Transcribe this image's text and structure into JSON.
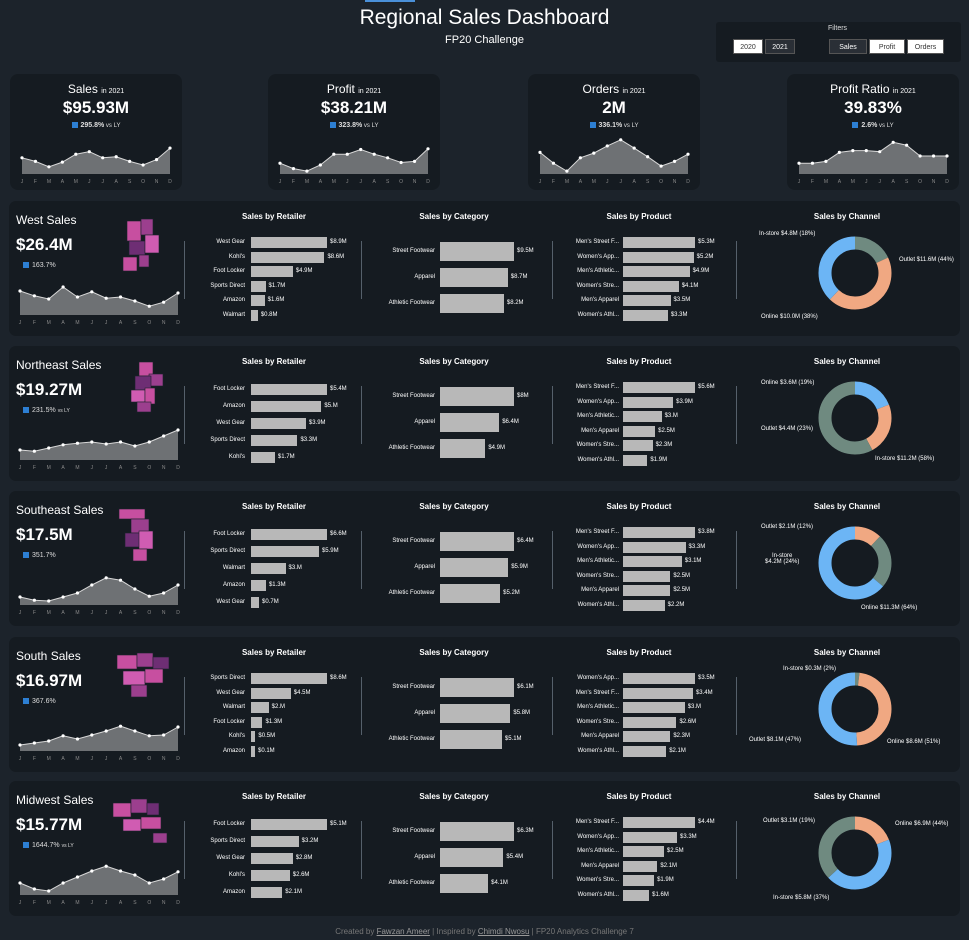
{
  "title": "Regional Sales Dashboard",
  "subtitle": "FP20 Challenge",
  "filters": {
    "label": "Filters",
    "years": [
      "2020",
      "2021"
    ],
    "metrics": [
      "Sales",
      "Profit",
      "Orders"
    ]
  },
  "kpis": [
    {
      "name": "Sales",
      "suffix": "in 2021",
      "value": "$95.93M",
      "delta": "295.8%",
      "vs": "vs LY",
      "spark": [
        0.45,
        0.35,
        0.2,
        0.33,
        0.55,
        0.62,
        0.45,
        0.48,
        0.35,
        0.25,
        0.4,
        0.72
      ]
    },
    {
      "name": "Profit",
      "suffix": "in 2021",
      "value": "$38.21M",
      "delta": "323.8%",
      "vs": "vs LY",
      "spark": [
        0.3,
        0.15,
        0.08,
        0.25,
        0.55,
        0.55,
        0.68,
        0.55,
        0.45,
        0.32,
        0.35,
        0.7
      ]
    },
    {
      "name": "Orders",
      "suffix": "in 2021",
      "value": "2M",
      "delta": "336.1%",
      "vs": "vs LY",
      "spark": [
        0.6,
        0.3,
        0.08,
        0.45,
        0.58,
        0.78,
        0.95,
        0.72,
        0.48,
        0.22,
        0.35,
        0.55
      ]
    },
    {
      "name": "Profit Ratio",
      "suffix": "in 2021",
      "value": "39.83%",
      "delta": "2.6%",
      "vs": "vs LY",
      "spark": [
        0.3,
        0.3,
        0.35,
        0.6,
        0.65,
        0.65,
        0.62,
        0.88,
        0.8,
        0.5,
        0.5,
        0.5
      ]
    }
  ],
  "months": [
    "J",
    "F",
    "M",
    "A",
    "M",
    "J",
    "J",
    "A",
    "S",
    "O",
    "N",
    "D"
  ],
  "regions": [
    {
      "name": "West Sales",
      "value": "$26.4M",
      "delta": "163.7%",
      "vs": "",
      "spark": [
        0.6,
        0.48,
        0.4,
        0.7,
        0.45,
        0.58,
        0.42,
        0.45,
        0.35,
        0.22,
        0.32,
        0.55
      ],
      "retailer": {
        "labels": [
          "West Gear",
          "Kohl's",
          "Foot Locker",
          "Sports Direct",
          "Amazon",
          "Walmart"
        ],
        "values": [
          8.9,
          8.6,
          4.9,
          1.7,
          1.6,
          0.8
        ],
        "text": [
          "$8.9M",
          "$8.6M",
          "$4.9M",
          "$1.7M",
          "$1.6M",
          "$0.8M"
        ]
      },
      "category": {
        "labels": [
          "Street Footwear",
          "Apparel",
          "Athletic Footwear"
        ],
        "values": [
          9.5,
          8.7,
          8.2
        ],
        "text": [
          "$9.5M",
          "$8.7M",
          "$8.2M"
        ]
      },
      "product": {
        "labels": [
          "Men's Street F...",
          "Women's App...",
          "Men's Athletic...",
          "Women's Stre...",
          "Men's Apparel",
          "Women's Athl..."
        ],
        "values": [
          5.3,
          5.2,
          4.9,
          4.1,
          3.5,
          3.3
        ],
        "text": [
          "$5.3M",
          "$5.2M",
          "$4.9M",
          "$4.1M",
          "$3.5M",
          "$3.3M"
        ]
      },
      "channel": {
        "labels": [
          "In-store $4.8M (18%)",
          "Outlet $11.6M (44%)",
          "Online $10.0M (38%)"
        ],
        "shares": [
          18,
          44,
          38
        ],
        "colors": [
          "#6f8a80",
          "#f0a882",
          "#6cb5f5"
        ]
      }
    },
    {
      "name": "Northeast Sales",
      "value": "$19.27M",
      "delta": "231.5%",
      "vs": "vs LY",
      "spark": [
        0.25,
        0.22,
        0.3,
        0.38,
        0.42,
        0.45,
        0.4,
        0.45,
        0.35,
        0.45,
        0.6,
        0.75
      ],
      "retailer": {
        "labels": [
          "Foot Locker",
          "Amazon",
          "West Gear",
          "Sports Direct",
          "Kohl's"
        ],
        "values": [
          5.4,
          5.0,
          3.9,
          3.3,
          1.7
        ],
        "text": [
          "$5.4M",
          "$5.M",
          "$3.9M",
          "$3.3M",
          "$1.7M"
        ]
      },
      "category": {
        "labels": [
          "Street Footwear",
          "Apparel",
          "Athletic Footwear"
        ],
        "values": [
          8.0,
          6.4,
          4.9
        ],
        "text": [
          "$8M",
          "$6.4M",
          "$4.9M"
        ]
      },
      "product": {
        "labels": [
          "Men's Street F...",
          "Women's App...",
          "Men's Athletic...",
          "Men's Apparel",
          "Women's Stre...",
          "Women's Athl..."
        ],
        "values": [
          5.6,
          3.9,
          3.0,
          2.5,
          2.3,
          1.9
        ],
        "text": [
          "$5.6M",
          "$3.9M",
          "$3.M",
          "$2.5M",
          "$2.3M",
          "$1.9M"
        ]
      },
      "channel": {
        "labels": [
          "Online $3.6M (19%)",
          "Outlet $4.4M (23%)",
          "In-store $11.2M (58%)"
        ],
        "shares": [
          19,
          23,
          58
        ],
        "colors": [
          "#6cb5f5",
          "#f0a882",
          "#6f8a80"
        ]
      }
    },
    {
      "name": "Southeast Sales",
      "value": "$17.5M",
      "delta": "351.7%",
      "vs": "",
      "spark": [
        0.2,
        0.12,
        0.1,
        0.2,
        0.3,
        0.5,
        0.68,
        0.62,
        0.4,
        0.22,
        0.3,
        0.5
      ],
      "retailer": {
        "labels": [
          "Foot Locker",
          "Sports Direct",
          "Walmart",
          "Amazon",
          "West Gear"
        ],
        "values": [
          6.6,
          5.9,
          3.0,
          1.3,
          0.7
        ],
        "text": [
          "$6.6M",
          "$5.9M",
          "$3.M",
          "$1.3M",
          "$0.7M"
        ]
      },
      "category": {
        "labels": [
          "Street Footwear",
          "Apparel",
          "Athletic Footwear"
        ],
        "values": [
          6.4,
          5.9,
          5.2
        ],
        "text": [
          "$6.4M",
          "$5.9M",
          "$5.2M"
        ]
      },
      "product": {
        "labels": [
          "Men's Street F...",
          "Women's App...",
          "Men's Athletic...",
          "Women's Stre...",
          "Men's Apparel",
          "Women's Athl..."
        ],
        "values": [
          3.8,
          3.3,
          3.1,
          2.5,
          2.5,
          2.2
        ],
        "text": [
          "$3.8M",
          "$3.3M",
          "$3.1M",
          "$2.5M",
          "$2.5M",
          "$2.2M"
        ]
      },
      "channel": {
        "labels": [
          "Outlet $2.1M (12%)",
          "In-store\n$4.2M (24%)",
          "Online $11.3M (64%)"
        ],
        "shares": [
          12,
          24,
          64
        ],
        "colors": [
          "#f0a882",
          "#6f8a80",
          "#6cb5f5"
        ]
      }
    },
    {
      "name": "South Sales",
      "value": "$16.97M",
      "delta": "367.6%",
      "vs": "",
      "spark": [
        0.15,
        0.2,
        0.25,
        0.38,
        0.3,
        0.4,
        0.5,
        0.62,
        0.5,
        0.38,
        0.4,
        0.6
      ],
      "retailer": {
        "labels": [
          "Sports Direct",
          "West Gear",
          "Walmart",
          "Foot Locker",
          "Kohl's",
          "Amazon"
        ],
        "values": [
          8.6,
          4.5,
          2.0,
          1.3,
          0.5,
          0.1
        ],
        "text": [
          "$8.6M",
          "$4.5M",
          "$2.M",
          "$1.3M",
          "$0.5M",
          "$0.1M"
        ]
      },
      "category": {
        "labels": [
          "Street Footwear",
          "Apparel",
          "Athletic Footwear"
        ],
        "values": [
          6.1,
          5.8,
          5.1
        ],
        "text": [
          "$6.1M",
          "$5.8M",
          "$5.1M"
        ]
      },
      "product": {
        "labels": [
          "Women's App...",
          "Men's Street F...",
          "Men's Athletic...",
          "Women's Stre...",
          "Men's Apparel",
          "Women's Athl..."
        ],
        "values": [
          3.5,
          3.4,
          3.0,
          2.6,
          2.3,
          2.1
        ],
        "text": [
          "$3.5M",
          "$3.4M",
          "$3.M",
          "$2.6M",
          "$2.3M",
          "$2.1M"
        ]
      },
      "channel": {
        "labels": [
          "In-store $0.3M (2%)",
          "Outlet $8.1M (47%)",
          "Online $8.6M (51%)"
        ],
        "shares": [
          2,
          47,
          51
        ],
        "colors": [
          "#6f8a80",
          "#f0a882",
          "#6cb5f5"
        ]
      }
    },
    {
      "name": "Midwest Sales",
      "value": "$15.77M",
      "delta": "1644.7%",
      "vs": "vs LY",
      "spark": [
        0.3,
        0.15,
        0.1,
        0.3,
        0.45,
        0.6,
        0.72,
        0.6,
        0.5,
        0.3,
        0.4,
        0.58
      ],
      "retailer": {
        "labels": [
          "Foot Locker",
          "Sports Direct",
          "West Gear",
          "Kohl's",
          "Amazon"
        ],
        "values": [
          5.1,
          3.2,
          2.8,
          2.6,
          2.1
        ],
        "text": [
          "$5.1M",
          "$3.2M",
          "$2.8M",
          "$2.6M",
          "$2.1M"
        ]
      },
      "category": {
        "labels": [
          "Street Footwear",
          "Apparel",
          "Athletic Footwear"
        ],
        "values": [
          6.3,
          5.4,
          4.1
        ],
        "text": [
          "$6.3M",
          "$5.4M",
          "$4.1M"
        ]
      },
      "product": {
        "labels": [
          "Men's Street F...",
          "Women's App...",
          "Men's Athletic...",
          "Men's Apparel",
          "Women's Stre...",
          "Women's Athl..."
        ],
        "values": [
          4.4,
          3.3,
          2.5,
          2.1,
          1.9,
          1.6
        ],
        "text": [
          "$4.4M",
          "$3.3M",
          "$2.5M",
          "$2.1M",
          "$1.9M",
          "$1.6M"
        ]
      },
      "channel": {
        "labels": [
          "Outlet $3.1M (19%)",
          "Online $6.9M (44%)",
          "In-store $5.8M (37%)"
        ],
        "shares": [
          19,
          44,
          37
        ],
        "colors": [
          "#f0a882",
          "#6cb5f5",
          "#6f8a80"
        ]
      }
    }
  ],
  "panel_titles": {
    "retailer": "Sales by Retailer",
    "category": "Sales by Category",
    "product": "Sales by Product",
    "channel": "Sales by Channel"
  },
  "footer": {
    "created": "Created by",
    "author": "Fawzan Ameer",
    "inspired": "| Inspired by",
    "inspirer": "Chimdi Nwosu",
    "rest": "| FP20 Analytics Challenge 7"
  },
  "chart_data": [
    {
      "type": "line",
      "title": "Sales in 2021",
      "x": [
        "J",
        "F",
        "M",
        "A",
        "M",
        "J",
        "J",
        "A",
        "S",
        "O",
        "N",
        "D"
      ]
    },
    {
      "type": "line",
      "title": "Profit in 2021",
      "x": [
        "J",
        "F",
        "M",
        "A",
        "M",
        "J",
        "J",
        "A",
        "S",
        "O",
        "N",
        "D"
      ]
    },
    {
      "type": "line",
      "title": "Orders in 2021",
      "x": [
        "J",
        "F",
        "M",
        "A",
        "M",
        "J",
        "J",
        "A",
        "S",
        "O",
        "N",
        "D"
      ]
    },
    {
      "type": "line",
      "title": "Profit Ratio in 2021",
      "x": [
        "J",
        "F",
        "M",
        "A",
        "M",
        "J",
        "J",
        "A",
        "S",
        "O",
        "N",
        "D"
      ]
    }
  ]
}
